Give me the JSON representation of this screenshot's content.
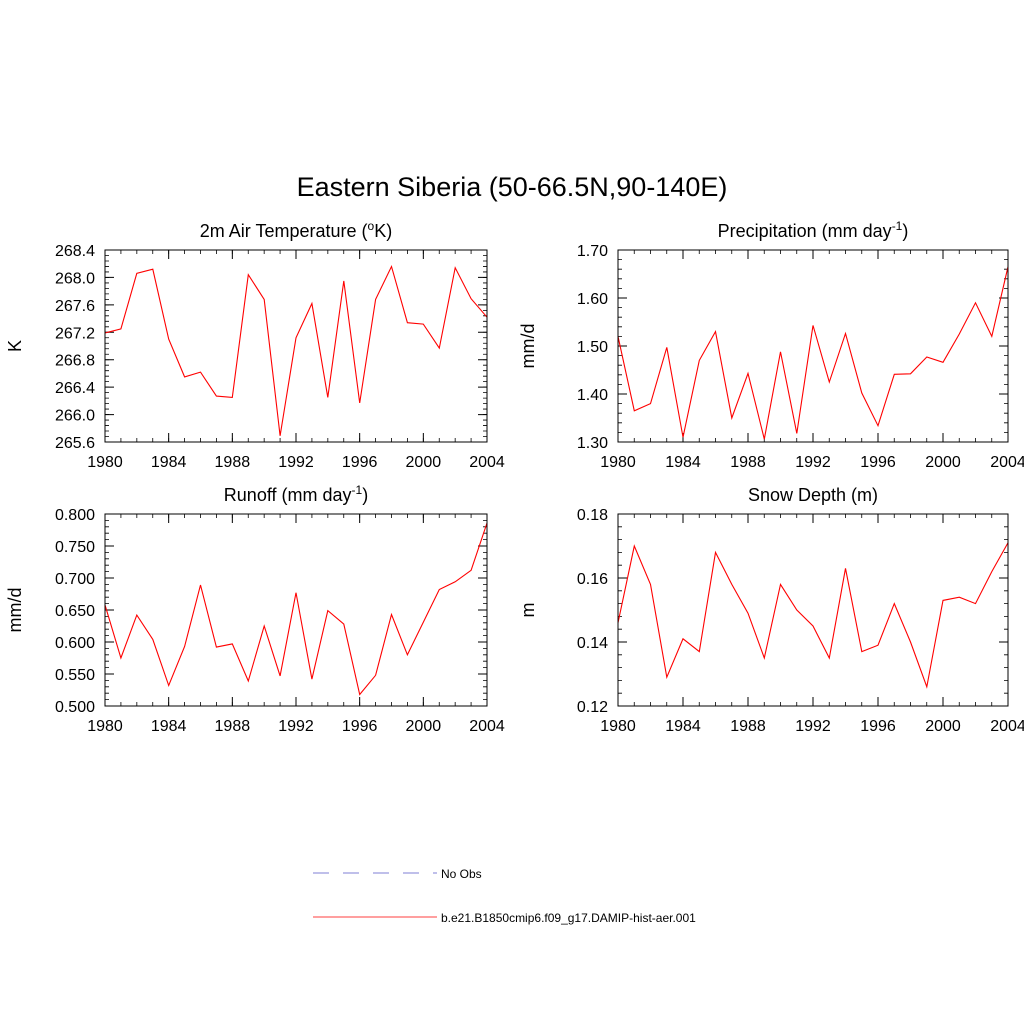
{
  "title": "Eastern Siberia (50-66.5N,90-140E)",
  "chart_data": [
    {
      "type": "line",
      "title": "2m Air Temperature (",
      "title_super": "o",
      "title_tail": "K)",
      "ylabel": "K",
      "xlim": [
        1980,
        2004
      ],
      "ylim": [
        265.6,
        268.4
      ],
      "x_ticks": [
        1980,
        1984,
        1988,
        1992,
        1996,
        2000,
        2004
      ],
      "y_ticks": [
        "265.6",
        "266.0",
        "266.4",
        "266.8",
        "267.2",
        "267.6",
        "268.0",
        "268.4"
      ],
      "series": [
        {
          "color": "#ff0000",
          "x": [
            1980,
            1981,
            1982,
            1983,
            1984,
            1985,
            1986,
            1987,
            1988,
            1989,
            1990,
            1991,
            1992,
            1993,
            1994,
            1995,
            1996,
            1997,
            1998,
            1999,
            2000,
            2001,
            2002,
            2003,
            2004
          ],
          "y": [
            267.19,
            267.25,
            268.06,
            268.12,
            267.1,
            266.55,
            266.62,
            266.27,
            266.25,
            268.04,
            267.68,
            265.69,
            267.12,
            267.62,
            266.25,
            267.95,
            266.17,
            267.68,
            268.16,
            267.34,
            267.32,
            266.97,
            268.14,
            267.69,
            267.42
          ]
        }
      ]
    },
    {
      "type": "line",
      "title": "Precipitation (mm day",
      "title_super": "-1",
      "title_tail": ")",
      "ylabel": "mm/d",
      "xlim": [
        1980,
        2004
      ],
      "ylim": [
        1.3,
        1.7
      ],
      "x_ticks": [
        1980,
        1984,
        1988,
        1992,
        1996,
        2000,
        2004
      ],
      "y_ticks": [
        "1.30",
        "1.40",
        "1.50",
        "1.60",
        "1.70"
      ],
      "series": [
        {
          "color": "#ff0000",
          "x": [
            1980,
            1981,
            1982,
            1983,
            1984,
            1985,
            1986,
            1987,
            1988,
            1989,
            1990,
            1991,
            1992,
            1993,
            1994,
            1995,
            1996,
            1997,
            1998,
            1999,
            2000,
            2001,
            2002,
            2003,
            2004
          ],
          "y": [
            1.52,
            1.365,
            1.38,
            1.497,
            1.31,
            1.47,
            1.53,
            1.35,
            1.443,
            1.306,
            1.488,
            1.318,
            1.543,
            1.425,
            1.526,
            1.402,
            1.334,
            1.441,
            1.442,
            1.477,
            1.466,
            1.525,
            1.59,
            1.52,
            1.665
          ]
        }
      ]
    },
    {
      "type": "line",
      "title": "Runoff (mm day",
      "title_super": "-1",
      "title_tail": ")",
      "ylabel": "mm/d",
      "xlim": [
        1980,
        2004
      ],
      "ylim": [
        0.5,
        0.8
      ],
      "x_ticks": [
        1980,
        1984,
        1988,
        1992,
        1996,
        2000,
        2004
      ],
      "y_ticks": [
        "0.500",
        "0.550",
        "0.600",
        "0.650",
        "0.700",
        "0.750",
        "0.800"
      ],
      "series": [
        {
          "color": "#ff0000",
          "x": [
            1980,
            1981,
            1982,
            1983,
            1984,
            1985,
            1986,
            1987,
            1988,
            1989,
            1990,
            1991,
            1992,
            1993,
            1994,
            1995,
            1996,
            1997,
            1998,
            1999,
            2000,
            2001,
            2002,
            2003,
            2004
          ],
          "y": [
            0.658,
            0.575,
            0.642,
            0.604,
            0.532,
            0.593,
            0.689,
            0.592,
            0.597,
            0.539,
            0.625,
            0.547,
            0.677,
            0.542,
            0.649,
            0.628,
            0.518,
            0.548,
            0.643,
            0.58,
            0.631,
            0.682,
            0.694,
            0.712,
            0.786
          ]
        }
      ]
    },
    {
      "type": "line",
      "title": "Snow Depth (m)",
      "title_super": "",
      "title_tail": "",
      "ylabel": "m",
      "xlim": [
        1980,
        2004
      ],
      "ylim": [
        0.12,
        0.18
      ],
      "x_ticks": [
        1980,
        1984,
        1988,
        1992,
        1996,
        2000,
        2004
      ],
      "y_ticks": [
        "0.12",
        "0.14",
        "0.16",
        "0.18"
      ],
      "series": [
        {
          "color": "#ff0000",
          "x": [
            1980,
            1981,
            1982,
            1983,
            1984,
            1985,
            1986,
            1987,
            1988,
            1989,
            1990,
            1991,
            1992,
            1993,
            1994,
            1995,
            1996,
            1997,
            1998,
            1999,
            2000,
            2001,
            2002,
            2003,
            2004
          ],
          "y": [
            0.146,
            0.17,
            0.158,
            0.129,
            0.141,
            0.137,
            0.168,
            0.158,
            0.149,
            0.135,
            0.158,
            0.15,
            0.145,
            0.135,
            0.163,
            0.137,
            0.139,
            0.152,
            0.14,
            0.126,
            0.153,
            0.154,
            0.152,
            0.162,
            0.171
          ]
        }
      ]
    }
  ],
  "legend": [
    {
      "label": "No Obs",
      "color": "#9999dd",
      "style": "dashed"
    },
    {
      "label": "b.e21.B1850cmip6.f09_g17.DAMIP-hist-aer.001",
      "color": "#ff6666",
      "style": "solid"
    }
  ]
}
